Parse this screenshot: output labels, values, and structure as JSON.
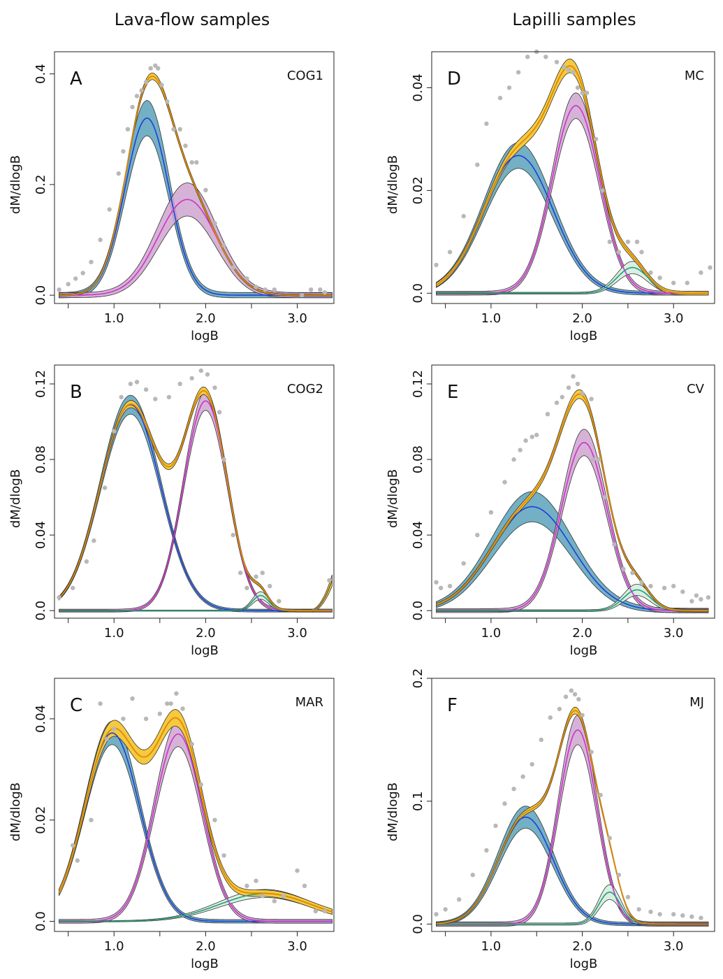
{
  "figure": {
    "column_titles": [
      "Lava-flow samples",
      "Lapilli samples"
    ]
  },
  "colors": {
    "comp1": "#1f3fd6",
    "comp1_band": "#5aa2bb",
    "comp2": "#cc33cc",
    "comp2_band": "#cfa6cf",
    "comp3": "#2a9a78",
    "comp3_band": "#d6efe0",
    "total": "#e08a00",
    "total_band": "#f6c93e",
    "data_line": "#444444",
    "data_band": "#9a9a9a",
    "points": "#b8b8b8"
  },
  "chart_data": [
    {
      "type": "line",
      "panel": "A",
      "sample": "COG1",
      "xlabel": "logB",
      "ylabel": "dM/dlogB",
      "xlim": [
        0.35,
        3.4
      ],
      "ylim": [
        -0.015,
        0.44
      ],
      "xticks": [
        1.0,
        2.0,
        3.0
      ],
      "xtick_labels": [
        "1.0",
        "2.0",
        "3.0"
      ],
      "yticks": [
        0.0,
        0.2,
        0.4
      ],
      "ytick_labels": [
        "0.0",
        "0.2",
        "0.4"
      ],
      "components": [
        {
          "name": "component 1",
          "color": "comp1",
          "mu": 1.36,
          "sigma": 0.24,
          "peak": 0.32,
          "band": 0.032
        },
        {
          "name": "component 2",
          "color": "comp2",
          "mu": 1.8,
          "sigma": 0.32,
          "peak": 0.173,
          "band": 0.03
        }
      ],
      "total_band": 0.004,
      "points": [
        [
          0.4,
          0.01
        ],
        [
          0.5,
          0.02
        ],
        [
          0.58,
          0.03
        ],
        [
          0.66,
          0.04
        ],
        [
          0.75,
          0.06
        ],
        [
          0.85,
          0.1
        ],
        [
          0.95,
          0.155
        ],
        [
          1.05,
          0.22
        ],
        [
          1.1,
          0.26
        ],
        [
          1.15,
          0.3
        ],
        [
          1.2,
          0.34
        ],
        [
          1.25,
          0.36
        ],
        [
          1.3,
          0.37
        ],
        [
          1.35,
          0.385
        ],
        [
          1.4,
          0.41
        ],
        [
          1.45,
          0.415
        ],
        [
          1.48,
          0.41
        ],
        [
          1.52,
          0.38
        ],
        [
          1.58,
          0.35
        ],
        [
          1.65,
          0.3
        ],
        [
          1.72,
          0.3
        ],
        [
          1.78,
          0.27
        ],
        [
          1.85,
          0.24
        ],
        [
          1.9,
          0.24
        ],
        [
          2.0,
          0.19
        ],
        [
          2.1,
          0.13
        ],
        [
          2.2,
          0.09
        ],
        [
          2.3,
          0.05
        ],
        [
          2.45,
          0.03
        ],
        [
          2.55,
          0.015
        ],
        [
          2.65,
          0.01
        ],
        [
          2.75,
          0.01
        ],
        [
          3.05,
          0.0
        ],
        [
          3.15,
          0.01
        ],
        [
          3.25,
          0.01
        ],
        [
          3.3,
          0.005
        ]
      ]
    },
    {
      "type": "line",
      "panel": "B",
      "sample": "COG2",
      "xlabel": "logB",
      "ylabel": "dM/dlogB",
      "xlim": [
        0.35,
        3.4
      ],
      "ylim": [
        -0.004,
        0.13
      ],
      "xticks": [
        1.0,
        2.0,
        3.0
      ],
      "xtick_labels": [
        "1.0",
        "2.0",
        "3.0"
      ],
      "yticks": [
        0.0,
        0.04,
        0.08,
        0.12
      ],
      "ytick_labels": [
        "0.0",
        "0.04",
        "0.08",
        "0.12"
      ],
      "components": [
        {
          "name": "component 1",
          "color": "comp1",
          "mu": 1.18,
          "sigma": 0.33,
          "peak": 0.109,
          "band": 0.005
        },
        {
          "name": "component 2",
          "color": "comp2",
          "mu": 2.0,
          "sigma": 0.24,
          "peak": 0.111,
          "band": 0.005
        },
        {
          "name": "component 3",
          "color": "comp3",
          "mu": 2.6,
          "sigma": 0.09,
          "peak": 0.008,
          "band": 0.002
        }
      ],
      "total_band": 0.0015,
      "tail": {
        "from": 3.15,
        "to": 3.38,
        "end_value": 0.016
      },
      "points": [
        [
          0.4,
          0.007
        ],
        [
          0.55,
          0.012
        ],
        [
          0.7,
          0.026
        ],
        [
          0.78,
          0.037
        ],
        [
          0.9,
          0.065
        ],
        [
          1.0,
          0.095
        ],
        [
          1.08,
          0.113
        ],
        [
          1.18,
          0.12
        ],
        [
          1.25,
          0.121
        ],
        [
          1.35,
          0.117
        ],
        [
          1.45,
          0.112
        ],
        [
          1.6,
          0.113
        ],
        [
          1.72,
          0.12
        ],
        [
          1.85,
          0.123
        ],
        [
          1.95,
          0.127
        ],
        [
          2.02,
          0.125
        ],
        [
          2.1,
          0.118
        ],
        [
          2.15,
          0.105
        ],
        [
          2.2,
          0.08
        ],
        [
          2.3,
          0.04
        ],
        [
          2.38,
          0.02
        ],
        [
          2.45,
          0.012
        ],
        [
          2.55,
          0.018
        ],
        [
          2.62,
          0.02
        ],
        [
          2.7,
          0.013
        ],
        [
          2.8,
          0.005
        ],
        [
          3.35,
          0.016
        ]
      ]
    },
    {
      "type": "line",
      "panel": "C",
      "sample": "MAR",
      "xlabel": "logB",
      "ylabel": "dM/dlogB",
      "xlim": [
        0.35,
        3.4
      ],
      "ylim": [
        -0.002,
        0.048
      ],
      "xticks": [
        1.0,
        2.0,
        3.0
      ],
      "xtick_labels": [
        "1.0",
        "2.0",
        "3.0"
      ],
      "yticks": [
        0.0,
        0.02,
        0.04
      ],
      "ytick_labels": [
        "0.0",
        "0.02",
        "0.04"
      ],
      "components": [
        {
          "name": "component 1",
          "color": "comp1",
          "mu": 0.98,
          "sigma": 0.3,
          "peak": 0.0372,
          "band": 0.0023
        },
        {
          "name": "component 2",
          "color": "comp2",
          "mu": 1.7,
          "sigma": 0.26,
          "peak": 0.037,
          "band": 0.0025
        },
        {
          "name": "component 3",
          "color": "comp3",
          "mu": 2.65,
          "sigma": 0.5,
          "peak": 0.0055,
          "band": 0.0008
        }
      ],
      "total_band": 0.0012,
      "points": [
        [
          0.55,
          0.015
        ],
        [
          0.6,
          0.012
        ],
        [
          0.75,
          0.02
        ],
        [
          0.85,
          0.043
        ],
        [
          0.92,
          0.036
        ],
        [
          1.0,
          0.038
        ],
        [
          1.1,
          0.04
        ],
        [
          1.2,
          0.044
        ],
        [
          1.35,
          0.04
        ],
        [
          1.5,
          0.041
        ],
        [
          1.58,
          0.043
        ],
        [
          1.62,
          0.043
        ],
        [
          1.68,
          0.045
        ],
        [
          1.75,
          0.042
        ],
        [
          1.85,
          0.035
        ],
        [
          1.95,
          0.027
        ],
        [
          2.1,
          0.02
        ],
        [
          2.2,
          0.013
        ],
        [
          2.45,
          0.007
        ],
        [
          2.55,
          0.008
        ],
        [
          2.62,
          0.005
        ],
        [
          2.75,
          0.004
        ],
        [
          2.85,
          0.005
        ],
        [
          3.0,
          0.01
        ],
        [
          3.08,
          0.007
        ],
        [
          3.2,
          0.002
        ],
        [
          3.3,
          0.002
        ]
      ]
    },
    {
      "type": "line",
      "panel": "D",
      "sample": "MC",
      "xlabel": "logB",
      "ylabel": "dM/dlogB",
      "xlim": [
        0.35,
        3.45
      ],
      "ylim": [
        -0.002,
        0.047
      ],
      "xticks": [
        1.0,
        2.0,
        3.0
      ],
      "xtick_labels": [
        "1.0",
        "2.0",
        "3.0"
      ],
      "yticks": [
        0.0,
        0.02,
        0.04
      ],
      "ytick_labels": [
        "0.0",
        "0.02",
        "0.04"
      ],
      "components": [
        {
          "name": "component 1",
          "color": "comp1",
          "mu": 1.3,
          "sigma": 0.38,
          "peak": 0.0268,
          "band": 0.0025
        },
        {
          "name": "component 2",
          "color": "comp2",
          "mu": 1.93,
          "sigma": 0.26,
          "peak": 0.0365,
          "band": 0.0025
        },
        {
          "name": "component 3",
          "color": "comp3",
          "mu": 2.55,
          "sigma": 0.17,
          "peak": 0.005,
          "band": 0.0012
        }
      ],
      "total_band": 0.0009,
      "points": [
        [
          0.4,
          0.0055
        ],
        [
          0.55,
          0.008
        ],
        [
          0.7,
          0.015
        ],
        [
          0.85,
          0.025
        ],
        [
          0.95,
          0.033
        ],
        [
          1.1,
          0.038
        ],
        [
          1.2,
          0.04
        ],
        [
          1.3,
          0.043
        ],
        [
          1.4,
          0.046
        ],
        [
          1.5,
          0.047
        ],
        [
          1.6,
          0.046
        ],
        [
          1.72,
          0.045
        ],
        [
          1.8,
          0.044
        ],
        [
          1.85,
          0.0435
        ],
        [
          1.9,
          0.043
        ],
        [
          1.95,
          0.04
        ],
        [
          2.0,
          0.039
        ],
        [
          2.05,
          0.039
        ],
        [
          2.15,
          0.03
        ],
        [
          2.22,
          0.02
        ],
        [
          2.3,
          0.01
        ],
        [
          2.4,
          0.008
        ],
        [
          2.5,
          0.01
        ],
        [
          2.6,
          0.01
        ],
        [
          2.65,
          0.008
        ],
        [
          2.75,
          0.004
        ],
        [
          2.85,
          0.003
        ],
        [
          3.0,
          0.002
        ],
        [
          3.15,
          0.002
        ],
        [
          3.3,
          0.004
        ],
        [
          3.4,
          0.005
        ]
      ]
    },
    {
      "type": "line",
      "panel": "E",
      "sample": "CV",
      "xlabel": "logB",
      "ylabel": "dM/dlogB",
      "xlim": [
        0.35,
        3.45
      ],
      "ylim": [
        -0.004,
        0.13
      ],
      "xticks": [
        1.0,
        2.0,
        3.0
      ],
      "xtick_labels": [
        "1.0",
        "2.0",
        "3.0"
      ],
      "yticks": [
        0.0,
        0.04,
        0.08,
        0.12
      ],
      "ytick_labels": [
        "0.0",
        "0.04",
        "0.08",
        "0.12"
      ],
      "components": [
        {
          "name": "component 1",
          "color": "comp1",
          "mu": 1.45,
          "sigma": 0.44,
          "peak": 0.055,
          "band": 0.008
        },
        {
          "name": "component 2",
          "color": "comp2",
          "mu": 2.02,
          "sigma": 0.25,
          "peak": 0.089,
          "band": 0.007
        },
        {
          "name": "component 3",
          "color": "comp3",
          "mu": 2.6,
          "sigma": 0.15,
          "peak": 0.011,
          "band": 0.003
        }
      ],
      "total_band": 0.0015,
      "points": [
        [
          0.4,
          0.015
        ],
        [
          0.45,
          0.012
        ],
        [
          0.55,
          0.013
        ],
        [
          0.7,
          0.025
        ],
        [
          0.85,
          0.04
        ],
        [
          1.0,
          0.052
        ],
        [
          1.15,
          0.068
        ],
        [
          1.25,
          0.08
        ],
        [
          1.32,
          0.085
        ],
        [
          1.38,
          0.09
        ],
        [
          1.45,
          0.092
        ],
        [
          1.5,
          0.093
        ],
        [
          1.62,
          0.104
        ],
        [
          1.72,
          0.11
        ],
        [
          1.78,
          0.113
        ],
        [
          1.85,
          0.118
        ],
        [
          1.9,
          0.124
        ],
        [
          1.95,
          0.12
        ],
        [
          2.0,
          0.115
        ],
        [
          2.1,
          0.112
        ],
        [
          2.12,
          0.08
        ],
        [
          2.18,
          0.08
        ],
        [
          2.25,
          0.06
        ],
        [
          2.35,
          0.035
        ],
        [
          2.45,
          0.022
        ],
        [
          2.55,
          0.02
        ],
        [
          2.65,
          0.015
        ],
        [
          2.75,
          0.013
        ],
        [
          2.9,
          0.012
        ],
        [
          3.0,
          0.013
        ],
        [
          3.1,
          0.01
        ],
        [
          3.2,
          0.005
        ],
        [
          3.25,
          0.008
        ],
        [
          3.3,
          0.006
        ],
        [
          3.38,
          0.007
        ]
      ]
    },
    {
      "type": "line",
      "panel": "F",
      "sample": "MJ",
      "xlabel": "logB",
      "ylabel": "dM/dlogB",
      "xlim": [
        0.35,
        3.45
      ],
      "ylim": [
        -0.006,
        0.2
      ],
      "xticks": [
        1.0,
        2.0,
        3.0
      ],
      "xtick_labels": [
        "1.0",
        "2.0",
        "3.0"
      ],
      "yticks": [
        0.0,
        0.1,
        0.2
      ],
      "ytick_labels": [
        "0.0",
        "0.1",
        "0.2"
      ],
      "components": [
        {
          "name": "component 1",
          "color": "comp1",
          "mu": 1.38,
          "sigma": 0.3,
          "peak": 0.087,
          "band": 0.009
        },
        {
          "name": "component 2",
          "color": "comp2",
          "mu": 1.95,
          "sigma": 0.21,
          "peak": 0.158,
          "band": 0.012
        },
        {
          "name": "component 3",
          "color": "comp3",
          "mu": 2.3,
          "sigma": 0.12,
          "peak": 0.026,
          "band": 0.006
        }
      ],
      "total_band": 0.002,
      "points": [
        [
          0.4,
          0.008
        ],
        [
          0.5,
          0.012
        ],
        [
          0.65,
          0.02
        ],
        [
          0.8,
          0.04
        ],
        [
          0.95,
          0.06
        ],
        [
          1.05,
          0.08
        ],
        [
          1.15,
          0.098
        ],
        [
          1.25,
          0.11
        ],
        [
          1.35,
          0.12
        ],
        [
          1.45,
          0.13
        ],
        [
          1.55,
          0.15
        ],
        [
          1.65,
          0.168
        ],
        [
          1.75,
          0.175
        ],
        [
          1.82,
          0.185
        ],
        [
          1.88,
          0.19
        ],
        [
          1.92,
          0.187
        ],
        [
          1.96,
          0.183
        ],
        [
          2.0,
          0.17
        ],
        [
          2.1,
          0.14
        ],
        [
          2.2,
          0.105
        ],
        [
          2.3,
          0.07
        ],
        [
          2.4,
          0.04
        ],
        [
          2.5,
          0.022
        ],
        [
          2.62,
          0.012
        ],
        [
          2.75,
          0.01
        ],
        [
          2.85,
          0.008
        ],
        [
          3.0,
          0.008
        ],
        [
          3.1,
          0.007
        ],
        [
          3.2,
          0.006
        ],
        [
          3.3,
          0.005
        ]
      ]
    }
  ]
}
